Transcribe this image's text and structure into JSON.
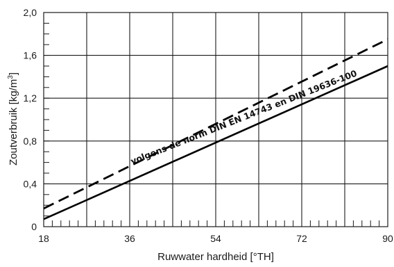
{
  "chart_data": {
    "type": "line",
    "title": "",
    "xlabel": "Ruwwater hardheid [°TH]",
    "ylabel_main": "Zoutverbruik [kg/m",
    "ylabel_sup": "3",
    "ylabel_close": "]",
    "xlim": [
      18,
      90
    ],
    "ylim": [
      0,
      2.0
    ],
    "x_ticks": [
      {
        "value": 18,
        "label": "18"
      },
      {
        "value": 36,
        "label": "36"
      },
      {
        "value": 54,
        "label": "54"
      },
      {
        "value": 72,
        "label": "72"
      },
      {
        "value": 90,
        "label": "90"
      }
    ],
    "y_ticks": [
      {
        "value": 0,
        "label": "0"
      },
      {
        "value": 0.4,
        "label": "0,4"
      },
      {
        "value": 0.8,
        "label": "0,8"
      },
      {
        "value": 1.2,
        "label": "1,2"
      },
      {
        "value": 1.6,
        "label": "1,6"
      },
      {
        "value": 2.0,
        "label": "2,0"
      }
    ],
    "x_gridlines": [
      27,
      36,
      45,
      54,
      63,
      72,
      81
    ],
    "y_gridlines": [
      0.4,
      0.8,
      1.2,
      1.6
    ],
    "x_minor_step": 1.8,
    "y_minor_step": 0.1,
    "grid": true,
    "series": [
      {
        "style": "solid",
        "x": [
          18,
          90
        ],
        "y": [
          0.07,
          1.5
        ]
      },
      {
        "style": "dashed",
        "x": [
          18,
          90
        ],
        "y": [
          0.17,
          1.75
        ]
      }
    ],
    "annotation": {
      "text": "volgens de norm DIN EN 14743 en DIN 19636-100",
      "anchor_x": 36.5,
      "anchor_y": 0.58,
      "angle_deg": -21.5
    },
    "colors": {
      "line": "#000000",
      "grid": "#1a1a1a",
      "text": "#1a1a1a"
    }
  }
}
